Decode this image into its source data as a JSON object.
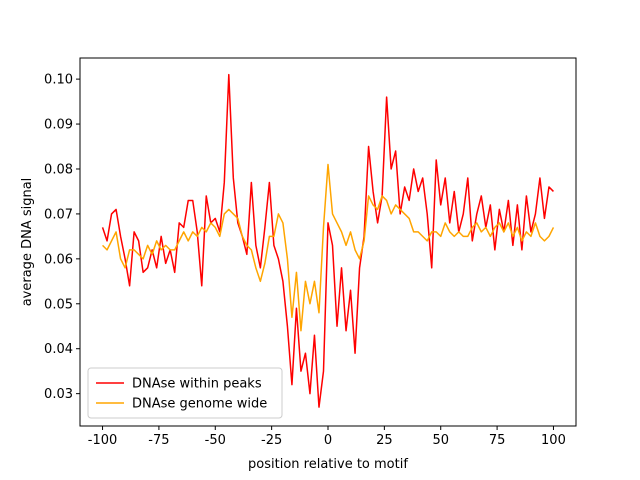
{
  "chart_data": {
    "type": "line",
    "xlabel": "position relative to motif",
    "ylabel": "average DNA signal",
    "x": [
      -100,
      -98,
      -96,
      -94,
      -92,
      -90,
      -88,
      -86,
      -84,
      -82,
      -80,
      -78,
      -76,
      -74,
      -72,
      -70,
      -68,
      -66,
      -64,
      -62,
      -60,
      -58,
      -56,
      -54,
      -52,
      -50,
      -48,
      -46,
      -44,
      -42,
      -40,
      -38,
      -36,
      -34,
      -32,
      -30,
      -28,
      -26,
      -24,
      -22,
      -20,
      -18,
      -16,
      -14,
      -12,
      -10,
      -8,
      -6,
      -4,
      -2,
      0,
      2,
      4,
      6,
      8,
      10,
      12,
      14,
      16,
      18,
      20,
      22,
      24,
      26,
      28,
      30,
      32,
      34,
      36,
      38,
      40,
      42,
      44,
      46,
      48,
      50,
      52,
      54,
      56,
      58,
      60,
      62,
      64,
      66,
      68,
      70,
      72,
      74,
      76,
      78,
      80,
      82,
      84,
      86,
      88,
      90,
      92,
      94,
      96,
      98,
      100
    ],
    "series": [
      {
        "name": "DNAse within peaks",
        "color": "#ff0000",
        "values": [
          0.067,
          0.064,
          0.07,
          0.071,
          0.065,
          0.06,
          0.054,
          0.066,
          0.064,
          0.057,
          0.058,
          0.062,
          0.058,
          0.065,
          0.059,
          0.062,
          0.057,
          0.068,
          0.067,
          0.073,
          0.073,
          0.066,
          0.054,
          0.074,
          0.068,
          0.069,
          0.066,
          0.077,
          0.101,
          0.078,
          0.068,
          0.065,
          0.061,
          0.077,
          0.063,
          0.058,
          0.067,
          0.077,
          0.063,
          0.06,
          0.055,
          0.045,
          0.032,
          0.049,
          0.035,
          0.039,
          0.03,
          0.043,
          0.027,
          0.035,
          0.068,
          0.063,
          0.045,
          0.058,
          0.044,
          0.053,
          0.039,
          0.058,
          0.065,
          0.085,
          0.075,
          0.068,
          0.074,
          0.096,
          0.08,
          0.084,
          0.07,
          0.076,
          0.073,
          0.08,
          0.075,
          0.078,
          0.07,
          0.058,
          0.082,
          0.072,
          0.078,
          0.068,
          0.075,
          0.066,
          0.07,
          0.078,
          0.064,
          0.07,
          0.074,
          0.067,
          0.072,
          0.062,
          0.071,
          0.066,
          0.073,
          0.063,
          0.072,
          0.062,
          0.074,
          0.066,
          0.07,
          0.078,
          0.069,
          0.076,
          0.075
        ]
      },
      {
        "name": "DNAse genome wide",
        "color": "#ffa500",
        "values": [
          0.063,
          0.062,
          0.064,
          0.066,
          0.06,
          0.058,
          0.062,
          0.062,
          0.061,
          0.06,
          0.063,
          0.061,
          0.064,
          0.062,
          0.063,
          0.062,
          0.062,
          0.064,
          0.066,
          0.064,
          0.066,
          0.065,
          0.067,
          0.066,
          0.068,
          0.067,
          0.065,
          0.07,
          0.071,
          0.07,
          0.069,
          0.065,
          0.063,
          0.062,
          0.058,
          0.055,
          0.059,
          0.065,
          0.065,
          0.07,
          0.068,
          0.06,
          0.047,
          0.057,
          0.044,
          0.055,
          0.05,
          0.055,
          0.048,
          0.067,
          0.081,
          0.07,
          0.068,
          0.066,
          0.063,
          0.066,
          0.062,
          0.06,
          0.064,
          0.074,
          0.072,
          0.071,
          0.074,
          0.073,
          0.07,
          0.072,
          0.071,
          0.07,
          0.069,
          0.066,
          0.066,
          0.065,
          0.064,
          0.066,
          0.066,
          0.065,
          0.068,
          0.066,
          0.065,
          0.066,
          0.065,
          0.065,
          0.067,
          0.068,
          0.066,
          0.067,
          0.065,
          0.067,
          0.068,
          0.066,
          0.068,
          0.065,
          0.067,
          0.064,
          0.066,
          0.065,
          0.068,
          0.065,
          0.064,
          0.065,
          0.067
        ]
      }
    ],
    "xlim": [
      -110,
      110
    ],
    "xticks": [
      -100,
      -75,
      -50,
      -25,
      0,
      25,
      50,
      75,
      100
    ],
    "ylim": [
      0.0228,
      0.1047
    ],
    "yticks": [
      0.03,
      0.04,
      0.05,
      0.06,
      0.07,
      0.08,
      0.09,
      {
        "value": 0.1,
        "label": "0.10"
      }
    ],
    "grid": false,
    "legend": "lower left"
  }
}
